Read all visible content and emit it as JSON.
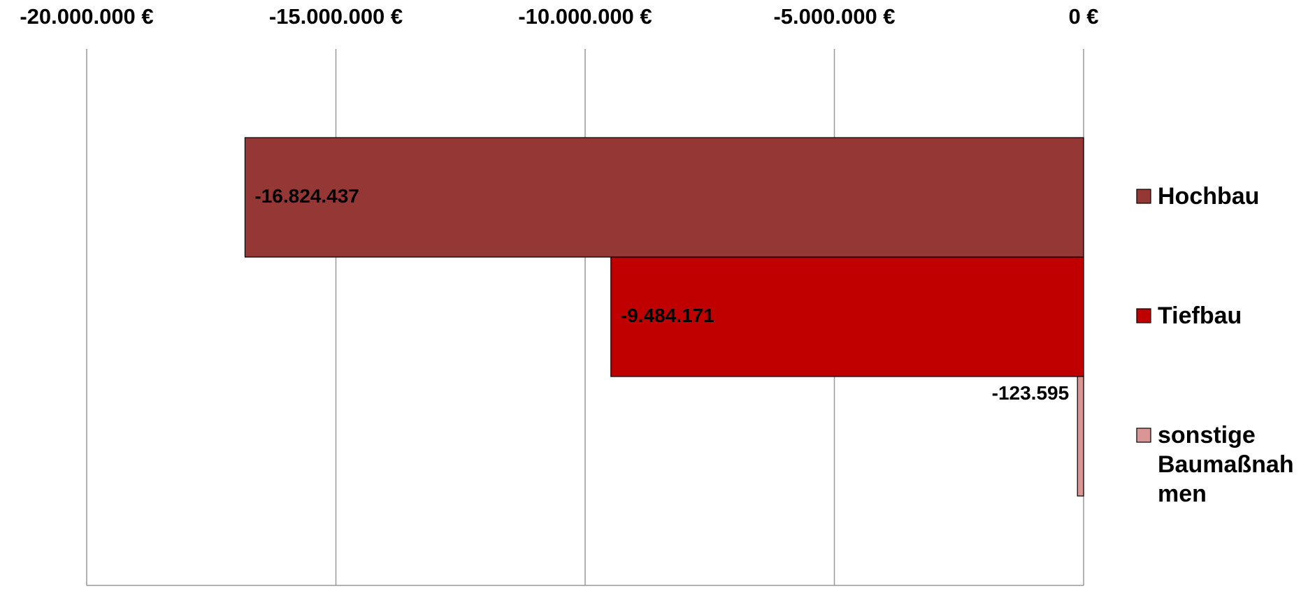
{
  "chart_data": {
    "type": "bar",
    "orientation": "horizontal",
    "categories": [
      null
    ],
    "series": [
      {
        "name": "Hochbau",
        "color": "#953735",
        "values": [
          -16824437
        ],
        "value_labels": [
          "-16.824.437"
        ]
      },
      {
        "name": "Tiefbau",
        "color": "#c00000",
        "values": [
          -9484171
        ],
        "value_labels": [
          "-9.484.171"
        ]
      },
      {
        "name": "sonstige Baumaßnahmen",
        "color": "#d99694",
        "values": [
          -123595
        ],
        "value_labels": [
          "-123.595"
        ]
      }
    ],
    "xlim": [
      -20000000,
      0
    ],
    "xticks": [
      {
        "value": -20000000,
        "label": "-20.000.000 €"
      },
      {
        "value": -15000000,
        "label": "-15.000.000 €"
      },
      {
        "value": -10000000,
        "label": "-10.000.000 €"
      },
      {
        "value": -5000000,
        "label": "-5.000.000 €"
      },
      {
        "value": 0,
        "label": "0 €"
      }
    ],
    "grid": true,
    "legend": "right"
  }
}
